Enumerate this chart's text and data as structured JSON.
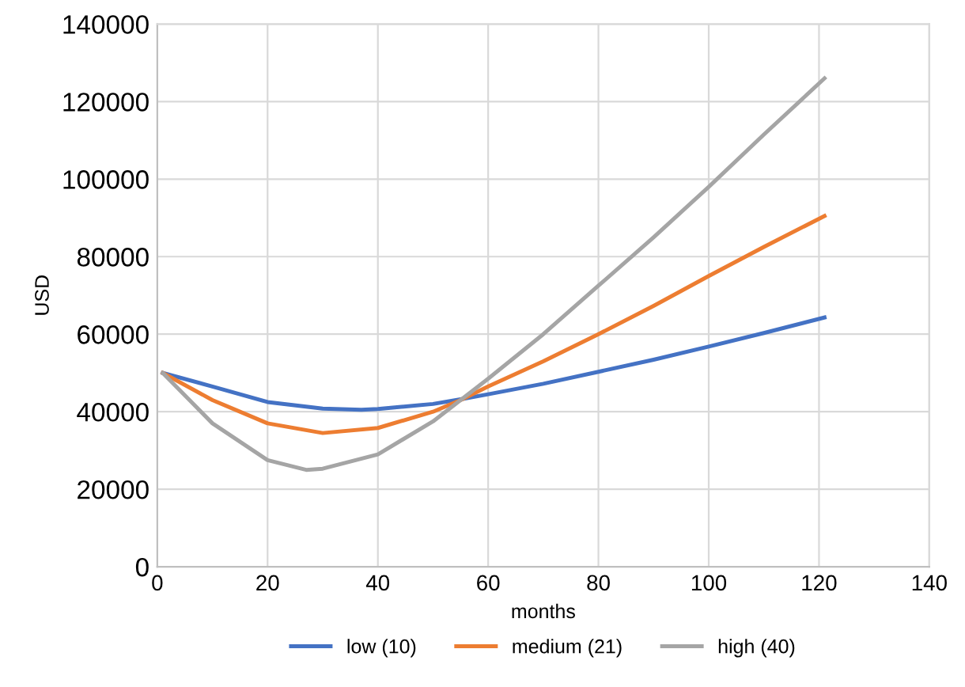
{
  "chart_data": {
    "type": "line",
    "xlabel": "months",
    "ylabel": "USD",
    "xlim": [
      0,
      140
    ],
    "xticks": [
      0,
      20,
      40,
      60,
      80,
      100,
      120,
      140
    ],
    "ylim": [
      0,
      140000
    ],
    "yticks": [
      0,
      20000,
      40000,
      60000,
      80000,
      100000,
      120000,
      140000
    ],
    "grid": true,
    "legend": "bottom",
    "marker": "none",
    "line_style": "solid",
    "series": [
      {
        "name": "low (10)",
        "color": "#4472c4",
        "x": [
          1,
          10,
          20,
          30,
          37,
          40,
          50,
          55,
          60,
          70,
          80,
          90,
          100,
          110,
          121
        ],
        "values": [
          50000,
          46500,
          42500,
          40800,
          40500,
          40700,
          42000,
          43200,
          44500,
          47200,
          50300,
          53400,
          56800,
          60300,
          64300
        ]
      },
      {
        "name": "medium (21)",
        "color": "#ed7d31",
        "x": [
          1,
          10,
          20,
          30,
          40,
          50,
          55,
          60,
          70,
          80,
          90,
          100,
          110,
          121
        ],
        "values": [
          50000,
          43000,
          37000,
          34500,
          35800,
          40000,
          43000,
          46500,
          53000,
          60000,
          67300,
          75000,
          82500,
          90500
        ]
      },
      {
        "name": "high (40)",
        "color": "#a5a5a5",
        "x": [
          1,
          10,
          20,
          27,
          30,
          40,
          50,
          55,
          60,
          70,
          80,
          90,
          100,
          110,
          121
        ],
        "values": [
          50000,
          37000,
          27500,
          25000,
          25300,
          29000,
          37500,
          43000,
          48500,
          60000,
          72500,
          85000,
          98000,
          111500,
          126000
        ]
      }
    ]
  }
}
